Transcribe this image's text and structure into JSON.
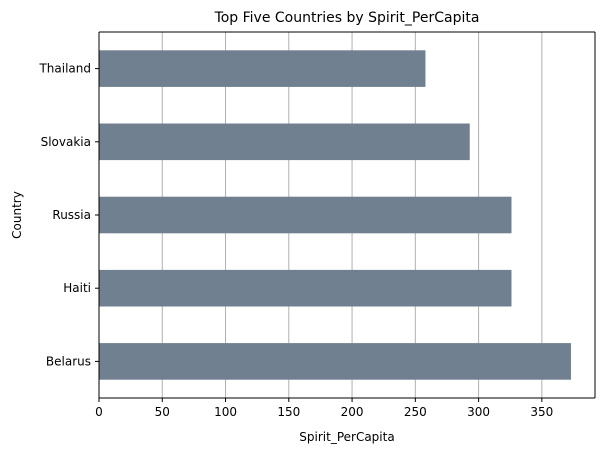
{
  "chart_data": {
    "type": "bar",
    "orientation": "horizontal",
    "title": "Top Five Countries by Spirit_PerCapita",
    "xlabel": "Spirit_PerCapita",
    "ylabel": "Country",
    "categories": [
      "Thailand",
      "Slovakia",
      "Russia",
      "Haiti",
      "Belarus"
    ],
    "values": [
      258,
      293,
      326,
      326,
      373
    ],
    "xlim": [
      0,
      392
    ],
    "xticks": [
      0,
      50,
      100,
      150,
      200,
      250,
      300,
      350
    ],
    "grid": {
      "x": true,
      "y": false
    },
    "bar_color": "#708090",
    "grid_color": "#b0b0b0"
  }
}
